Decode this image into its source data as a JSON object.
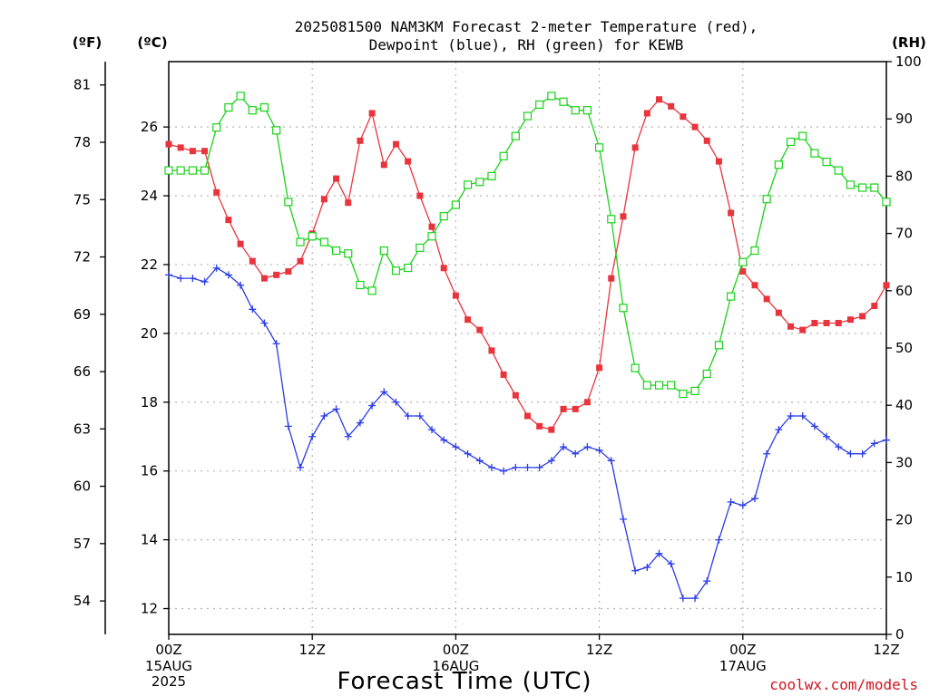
{
  "chart_data": {
    "type": "line",
    "title_line1": "2025081500 NAM3KM Forecast 2-meter Temperature (red),",
    "title_line2": "Dewpoint (blue), RH (green) for KEWB",
    "xlabel": "Forecast Time (UTC)",
    "credit": "coolwx.com/models",
    "units": {
      "fahrenheit": "(ºF)",
      "celsius": "(ºC)",
      "rh": "(RH)"
    },
    "x_hours_range": [
      0,
      60
    ],
    "y_celsius_range": [
      11.25,
      27.9
    ],
    "y_rh_range": [
      0,
      100
    ],
    "grid": true,
    "x_ticks": [
      {
        "hour": 0,
        "label": "00Z",
        "date": "15AUG",
        "year": "2025"
      },
      {
        "hour": 12,
        "label": "12Z",
        "date": "",
        "year": ""
      },
      {
        "hour": 24,
        "label": "00Z",
        "date": "16AUG",
        "year": ""
      },
      {
        "hour": 36,
        "label": "12Z",
        "date": "",
        "year": ""
      },
      {
        "hour": 48,
        "label": "00Z",
        "date": "17AUG",
        "year": ""
      },
      {
        "hour": 60,
        "label": "12Z",
        "date": "",
        "year": ""
      }
    ],
    "celsius_ticks": [
      12,
      14,
      16,
      18,
      20,
      22,
      24,
      26
    ],
    "fahrenheit_ticks": [
      54,
      57,
      60,
      63,
      66,
      69,
      72,
      75,
      78,
      81
    ],
    "rh_ticks": [
      0,
      10,
      20,
      30,
      40,
      50,
      60,
      70,
      80,
      90,
      100
    ],
    "series": [
      {
        "name": "Temperature",
        "unit": "C",
        "color": "#e8343c",
        "marker": "filled-square",
        "values": [
          25.5,
          25.4,
          25.3,
          25.3,
          24.1,
          23.3,
          22.6,
          22.1,
          21.6,
          21.7,
          21.8,
          22.1,
          22.9,
          23.9,
          24.5,
          23.8,
          25.6,
          26.4,
          24.9,
          25.5,
          25.0,
          24.0,
          23.1,
          21.9,
          21.1,
          20.4,
          20.1,
          19.5,
          18.8,
          18.2,
          17.6,
          17.3,
          17.2,
          17.8,
          17.8,
          18.0,
          19.0,
          21.6,
          23.4,
          25.4,
          26.4,
          26.8,
          26.6,
          26.3,
          26.0,
          25.6,
          25.0,
          23.5,
          21.8,
          21.4,
          21.0,
          20.6,
          20.2,
          20.1,
          20.3,
          20.3,
          20.3,
          20.4,
          20.5,
          20.8,
          21.4
        ]
      },
      {
        "name": "Dewpoint",
        "unit": "C",
        "color": "#2a3ce6",
        "marker": "plus",
        "values": [
          21.7,
          21.6,
          21.6,
          21.5,
          21.9,
          21.7,
          21.4,
          20.7,
          20.3,
          19.7,
          17.3,
          16.1,
          17.0,
          17.6,
          17.8,
          17.0,
          17.4,
          17.9,
          18.3,
          18.0,
          17.6,
          17.6,
          17.2,
          16.9,
          16.7,
          16.5,
          16.3,
          16.1,
          16.0,
          16.1,
          16.1,
          16.1,
          16.3,
          16.7,
          16.5,
          16.7,
          16.6,
          16.3,
          14.6,
          13.1,
          13.2,
          13.6,
          13.3,
          12.3,
          12.3,
          12.8,
          14.0,
          15.1,
          15.0,
          15.2,
          16.5,
          17.2,
          17.6,
          17.6,
          17.3,
          17.0,
          16.7,
          16.5,
          16.5,
          16.8,
          16.9
        ]
      },
      {
        "name": "RH",
        "unit": "%",
        "color": "#1ad21a",
        "marker": "open-square",
        "values": [
          81.0,
          81.0,
          81.0,
          81.0,
          88.5,
          92.0,
          94.0,
          91.5,
          92.0,
          88.0,
          75.5,
          68.5,
          69.5,
          68.5,
          67.0,
          66.5,
          61.0,
          60.0,
          67.0,
          63.5,
          64.0,
          67.5,
          69.5,
          73.0,
          75.0,
          78.5,
          79.0,
          80.0,
          83.5,
          87.0,
          90.5,
          92.5,
          94.0,
          93.0,
          91.5,
          91.5,
          85.0,
          72.5,
          57.0,
          46.5,
          43.5,
          43.5,
          43.5,
          42.0,
          42.5,
          45.5,
          50.5,
          59.0,
          65.0,
          67.0,
          76.0,
          82.0,
          86.0,
          87.0,
          84.0,
          82.5,
          81.0,
          78.5,
          78.0,
          78.0,
          75.5
        ]
      }
    ]
  }
}
